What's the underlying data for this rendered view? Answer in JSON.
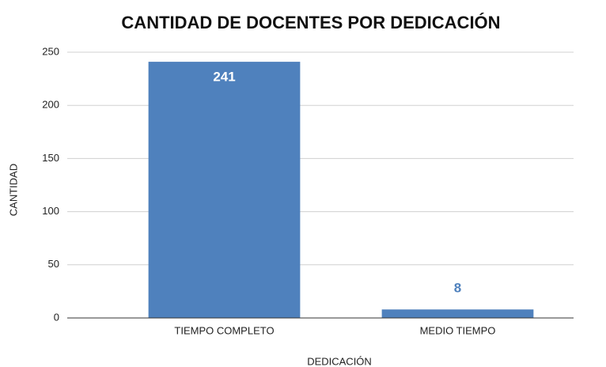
{
  "chart_data": {
    "type": "bar",
    "title": "CANTIDAD DE DOCENTES POR DEDICACIÓN",
    "x_label": "DEDICACIÓN",
    "y_label": "CANTIDAD",
    "categories": [
      "TIEMPO COMPLETO",
      "MEDIO TIEMPO"
    ],
    "values": [
      241,
      8
    ],
    "color": "#4f81bd",
    "ylim": [
      0,
      250
    ],
    "yticks": [
      0,
      50,
      100,
      150,
      200,
      250
    ],
    "grid": true
  }
}
